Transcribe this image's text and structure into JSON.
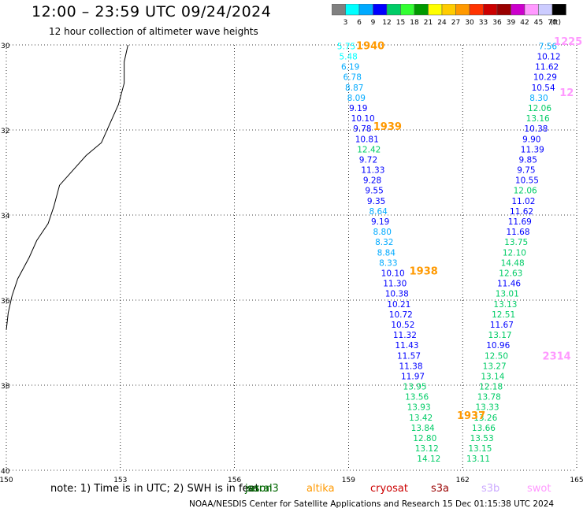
{
  "header": {
    "title": "12:00 – 23:59 UTC 09/24/2024",
    "subtitle": "12 hour collection of altimeter wave heights"
  },
  "colorbar": {
    "labels": [
      "3",
      "6",
      "9",
      "12",
      "15",
      "18",
      "21",
      "24",
      "27",
      "30",
      "33",
      "36",
      "39",
      "42",
      "45",
      "70"
    ],
    "unit": "(ft)",
    "colors": [
      "#808080",
      "#00ffff",
      "#00aaff",
      "#0000ff",
      "#00cc66",
      "#33ff33",
      "#009900",
      "#ffff00",
      "#ffcc00",
      "#ff9900",
      "#ff3300",
      "#cc0000",
      "#990000",
      "#cc00cc",
      "#ff99ff",
      "#ccccff",
      "#000000"
    ]
  },
  "map": {
    "lat_ticks": [
      "30",
      "32",
      "34",
      "36",
      "38",
      "40"
    ],
    "lon_ticks": [
      "150",
      "153",
      "156",
      "159",
      "162",
      "165"
    ],
    "lat_range": [
      -40,
      -30
    ],
    "lon_range": [
      150,
      165
    ],
    "grid": true
  },
  "tracks": [
    {
      "time_label": "1940",
      "lon": 159.0,
      "start_lat": -30.2,
      "step": 0.205,
      "time_label_lat": -30.2,
      "time_color": "#ff9900",
      "values": [
        "5.75",
        "5.48",
        "6.19",
        "6.78",
        "8.87",
        "8.09",
        "9.19",
        "10.10",
        "9.78",
        "10.81",
        "12.42",
        "9.72",
        "11.33",
        "9.28",
        "9.55",
        "9.35",
        "8.64",
        "9.19",
        "8.80",
        "8.32",
        "8.84",
        "8.33",
        "10.10",
        "11.30",
        "10.38",
        "10.21",
        "10.72",
        "10.52",
        "11.32",
        "11.43",
        "11.57",
        "11.38",
        "11.97",
        "13.95",
        "13.56",
        "13.93",
        "13.42",
        "13.84",
        "12.80",
        "13.12",
        "14.12"
      ]
    },
    {
      "time_label": "1225",
      "lon": 164.3,
      "time_color": "#ff99ff",
      "values": [
        "7.56",
        "10.12",
        "11.62",
        "10.29",
        "10.54",
        "8.30",
        "12.06",
        "13.16",
        "10.38",
        "9.90",
        "11.39",
        "9.85",
        "9.75",
        "10.55",
        "12.06",
        "11.02",
        "11.62",
        "11.69",
        "11.68",
        "13.75",
        "12.10",
        "14.48",
        "12.63",
        "11.46",
        "13.01",
        "13.13",
        "12.51",
        "11.67",
        "13.17",
        "10.96",
        "12.50",
        "13.27",
        "13.14",
        "12.18",
        "13.78",
        "13.33",
        "13.26",
        "13.66",
        "13.53",
        "13.15",
        "13.11"
      ]
    }
  ],
  "time_labels": [
    "1940",
    "1939",
    "1938",
    "1937",
    "1225",
    "12",
    "2314"
  ],
  "satellites": [
    {
      "name": "jason3",
      "color": "#006600"
    },
    {
      "name": "saral",
      "color": "#006600"
    },
    {
      "name": "altika",
      "color": "#ff9900"
    },
    {
      "name": "cryosat",
      "color": "#cc0000"
    },
    {
      "name": "s3a",
      "color": "#990000"
    },
    {
      "name": "s3b",
      "color": "#ccaaff"
    },
    {
      "name": "swot",
      "color": "#ff99ff"
    }
  ],
  "note": "note:  1) Time is in UTC; 2) SWH is in feet",
  "footer": "NOAA/NESDIS Center for Satellite Applications and Research    15 Dec 01:15:38 UTC 2024"
}
